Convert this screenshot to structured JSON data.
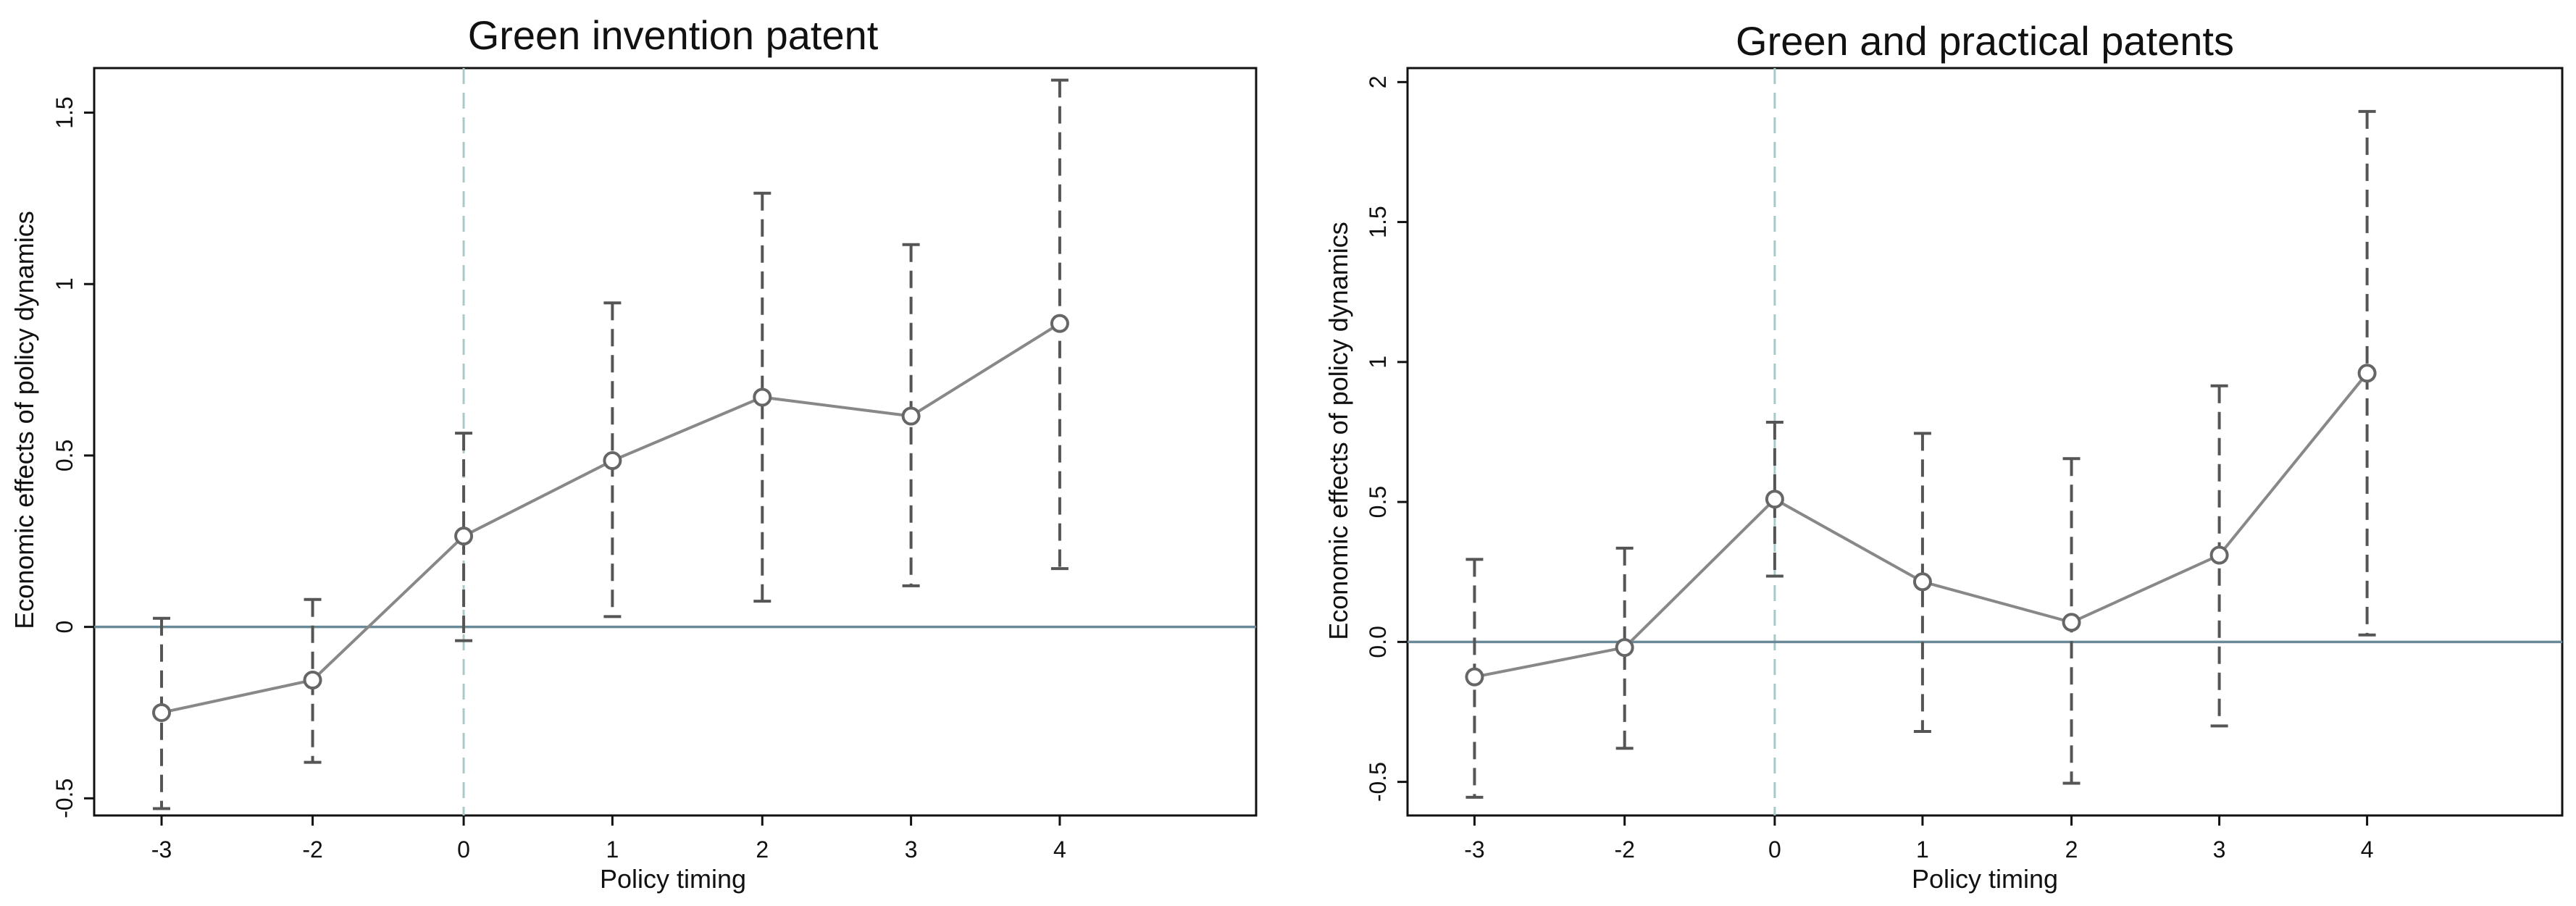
{
  "chart_data": [
    {
      "type": "line",
      "title": "Green invention patent",
      "xlabel": "Policy timing",
      "ylabel": "Economic effects of policy dynamics",
      "categories": [
        "-3",
        "-2",
        "0",
        "1",
        "2",
        "3",
        "4"
      ],
      "series": [
        {
          "values": [
            -0.25,
            -0.155,
            0.265,
            0.485,
            0.67,
            0.615,
            0.885
          ],
          "ci_lower": [
            -0.53,
            -0.395,
            -0.04,
            0.03,
            0.075,
            0.12,
            0.17
          ],
          "ci_upper": [
            0.025,
            0.08,
            0.565,
            0.945,
            1.265,
            1.115,
            1.595
          ]
        }
      ],
      "reference_line_y": 0,
      "reference_line_x": "0",
      "ylim": [
        -0.55,
        1.63
      ],
      "yticks": [
        -0.5,
        0,
        0.5,
        1,
        1.5
      ],
      "ytick_labels": [
        "-0.5",
        "0",
        "0.5",
        "1",
        "1.5"
      ],
      "grid": false,
      "colors": {
        "series": "#888888",
        "errorbar": "#555555",
        "zero_line": "#6a8a99",
        "event_line": "#a9c9c9",
        "frame": "#111111"
      }
    },
    {
      "type": "line",
      "title": "Green and practical patents",
      "xlabel": "Policy timing",
      "ylabel": "Economic effects of policy dynamics",
      "categories": [
        "-3",
        "-2",
        "0",
        "1",
        "2",
        "3",
        "4"
      ],
      "series": [
        {
          "values": [
            -0.125,
            -0.02,
            0.51,
            0.215,
            0.07,
            0.31,
            0.96
          ],
          "ci_lower": [
            -0.555,
            -0.38,
            0.235,
            -0.32,
            -0.505,
            -0.3,
            0.025
          ],
          "ci_upper": [
            0.295,
            0.335,
            0.785,
            0.745,
            0.655,
            0.915,
            1.895
          ]
        }
      ],
      "reference_line_y": 0,
      "reference_line_x": "0",
      "ylim": [
        -0.62,
        2.05
      ],
      "yticks": [
        -0.5,
        0,
        0.5,
        1,
        1.5,
        2
      ],
      "ytick_labels": [
        "-0.5",
        "0.0",
        "0.5",
        "1",
        "1.5",
        "2"
      ],
      "grid": false,
      "colors": {
        "series": "#888888",
        "errorbar": "#555555",
        "zero_line": "#6a8a99",
        "event_line": "#a9c9c9",
        "frame": "#111111"
      }
    }
  ]
}
